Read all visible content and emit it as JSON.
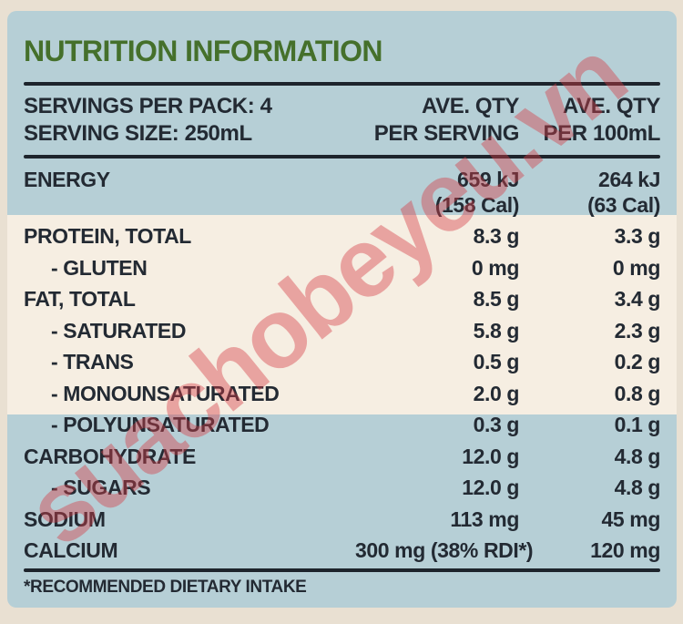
{
  "label": {
    "title": "NUTRITION INFORMATION",
    "servings_per_pack": "SERVINGS PER PACK: 4",
    "serving_size": "SERVING SIZE: 250mL",
    "col_serving": {
      "line1": "AVE. QTY",
      "line2": "PER SERVING"
    },
    "col_100ml": {
      "line1": "AVE. QTY",
      "line2": "PER 100mL"
    },
    "rows": [
      {
        "name": "ENERGY",
        "indent": false,
        "per_serving": [
          "659 kJ",
          "(158 Cal)"
        ],
        "per_100ml": [
          "264 kJ",
          "(63 Cal)"
        ]
      },
      {
        "name": "PROTEIN, TOTAL",
        "indent": false,
        "per_serving": [
          "8.3 g"
        ],
        "per_100ml": [
          "3.3 g"
        ]
      },
      {
        "name": "- GLUTEN",
        "indent": true,
        "per_serving": [
          "0 mg"
        ],
        "per_100ml": [
          "0 mg"
        ]
      },
      {
        "name": "FAT, TOTAL",
        "indent": false,
        "per_serving": [
          "8.5 g"
        ],
        "per_100ml": [
          "3.4 g"
        ]
      },
      {
        "name": "- SATURATED",
        "indent": true,
        "per_serving": [
          "5.8 g"
        ],
        "per_100ml": [
          "2.3 g"
        ]
      },
      {
        "name": "- TRANS",
        "indent": true,
        "per_serving": [
          "0.5 g"
        ],
        "per_100ml": [
          "0.2 g"
        ]
      },
      {
        "name": "- MONOUNSATURATED",
        "indent": true,
        "per_serving": [
          "2.0 g"
        ],
        "per_100ml": [
          "0.8 g"
        ]
      },
      {
        "name": "- POLYUNSATURATED",
        "indent": true,
        "per_serving": [
          "0.3 g"
        ],
        "per_100ml": [
          "0.1 g"
        ]
      },
      {
        "name": "CARBOHYDRATE",
        "indent": false,
        "per_serving": [
          "12.0 g"
        ],
        "per_100ml": [
          "4.8 g"
        ]
      },
      {
        "name": "- SUGARS",
        "indent": true,
        "per_serving": [
          "12.0 g"
        ],
        "per_100ml": [
          "4.8 g"
        ]
      },
      {
        "name": "SODIUM",
        "indent": false,
        "per_serving": [
          "113 mg"
        ],
        "per_100ml": [
          "45 mg"
        ]
      },
      {
        "name": "CALCIUM",
        "indent": false,
        "per_serving": [
          "300 mg (38% RDI*)"
        ],
        "per_100ml": [
          "120 mg"
        ]
      }
    ],
    "footnote": "*RECOMMENDED DIETARY INTAKE",
    "watermark": "suachobeyeu.vn"
  },
  "colors": {
    "blue": "#b6cfd6",
    "creamBand": "#f6eee2",
    "outer": "#e9e0d2",
    "green": "#45702b",
    "text": "#232a33",
    "rule": "#1d242c",
    "red": "#d63e46"
  }
}
